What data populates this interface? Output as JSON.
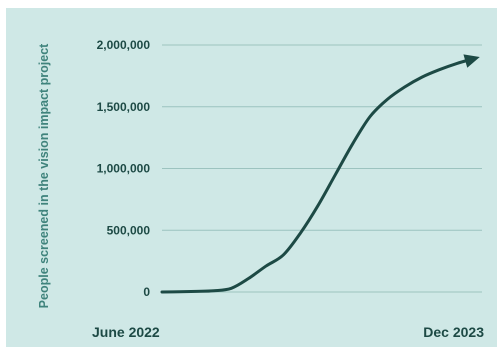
{
  "chart_data": {
    "type": "line",
    "ylabel": "People screened in the vision impact project",
    "xlabel": "",
    "x_tick_labels": [
      "June 2022",
      "Dec 2023"
    ],
    "x": [
      "2022-06",
      "2022-07",
      "2022-08",
      "2022-09",
      "2022-10",
      "2022-11",
      "2022-12",
      "2023-01",
      "2023-02",
      "2023-03",
      "2023-04",
      "2023-05",
      "2023-06",
      "2023-07",
      "2023-08",
      "2023-09",
      "2023-10",
      "2023-11",
      "2023-12"
    ],
    "series": [
      {
        "values": [
          0,
          2000,
          5000,
          10000,
          30000,
          110000,
          210000,
          300000,
          480000,
          700000,
          950000,
          1200000,
          1420000,
          1560000,
          1660000,
          1740000,
          1800000,
          1850000,
          1890000
        ]
      }
    ],
    "ylim": [
      0,
      2000000
    ],
    "y_ticks": [
      0,
      500000,
      1000000,
      1500000,
      2000000
    ],
    "y_tick_labels": [
      "0",
      "500,000",
      "1,000,000",
      "1,500,000",
      "2,000,000"
    ],
    "grid": "horizontal",
    "line_end": "arrow",
    "colors": {
      "background": "#cfe8e6",
      "line": "#1d4a45",
      "grid": "#9cc3bf",
      "text": "#1d4a45",
      "ylabel": "#3f837c"
    }
  }
}
